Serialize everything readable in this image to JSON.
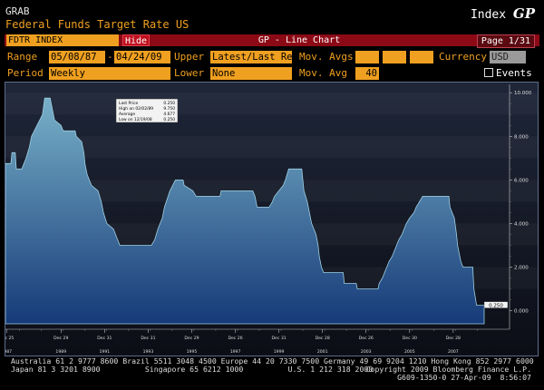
{
  "header": {
    "grab": "GRAB",
    "subtitle": "Federal Funds Target Rate US",
    "index_word": "Index",
    "gp": "GP"
  },
  "toolbar": {
    "ticker": "FDTR INDEX",
    "hide": "Hide",
    "title": "GP - Line Chart",
    "page": "Page 1/31"
  },
  "controls": {
    "range_label": "Range",
    "range_start": "05/08/87",
    "range_dash": "-",
    "range_end": "04/24/09",
    "upper_label": "Upper",
    "upper_value": "Latest/Last Re",
    "movavgs_label": "Mov. Avgs",
    "currency_label": "Currency",
    "currency_value": "USD",
    "period_label": "Period",
    "period_value": "Weekly",
    "lower_label": "Lower",
    "lower_value": "None",
    "movavg_label": "Mov. Avg",
    "movavg_value": "40",
    "events_label": "Events"
  },
  "legend_box": {
    "rows": [
      {
        "label": "Last Price",
        "value": "0.250"
      },
      {
        "label": "High on 02/02/89",
        "value": "9.750"
      },
      {
        "label": "Average",
        "value": "4.677"
      },
      {
        "label": "Low on 12/19/08",
        "value": "0.250"
      }
    ]
  },
  "footer": {
    "line1": "Australia 61 2 9777 8600 Brazil 5511 3048 4500 Europe 44 20 7330 7500 Germany 49 69 9204 1210 Hong Kong 852 2977 6000",
    "line2_left": "Japan 81 3 3201 8900          Singapore 65 6212 1000          U.S. 1 212 318 2000",
    "line2_right": "Copyright 2009 Bloomberg Finance L.P.",
    "line3_right": "G609-1350-0 27-Apr-09  8:56:07"
  },
  "colors": {
    "accent": "#f0a020",
    "bar": "#8c0a16",
    "area_top": "#78b0c8",
    "area_bottom": "#163a78"
  },
  "chart_data": {
    "type": "area",
    "x_axis_labels": [
      {
        "pos": 1987.4,
        "top": "Dec 25",
        "bottom": "1987"
      },
      {
        "pos": 1989.9,
        "top": "Dec 29",
        "bottom": "1989"
      },
      {
        "pos": 1991.9,
        "top": "Dec 31",
        "bottom": "1991"
      },
      {
        "pos": 1993.9,
        "top": "Dec 31",
        "bottom": "1993"
      },
      {
        "pos": 1995.9,
        "top": "Dec 29",
        "bottom": "1995"
      },
      {
        "pos": 1997.9,
        "top": "Dec 26",
        "bottom": "1997"
      },
      {
        "pos": 1999.9,
        "top": "Dec 31",
        "bottom": "1999"
      },
      {
        "pos": 2001.9,
        "top": "Dec 28",
        "bottom": "2001"
      },
      {
        "pos": 2003.9,
        "top": "Dec 26",
        "bottom": "2003"
      },
      {
        "pos": 2005.9,
        "top": "Dec 30",
        "bottom": "2005"
      },
      {
        "pos": 2007.9,
        "top": "Dec 28",
        "bottom": "2007"
      }
    ],
    "y_ticks": [
      0,
      2,
      4,
      6,
      8,
      10
    ],
    "y_tick_labels": [
      "0.000",
      "2.000",
      "4.000",
      "6.000",
      "8.000",
      "10.000"
    ],
    "last_value_label": "0.250",
    "xlim": [
      1987.35,
      2009.32
    ],
    "ylim": [
      -0.6,
      10.3
    ],
    "series": [
      {
        "points": [
          [
            1987.35,
            6.75
          ],
          [
            1987.6,
            6.75
          ],
          [
            1987.65,
            7.25
          ],
          [
            1987.8,
            7.25
          ],
          [
            1987.85,
            6.5
          ],
          [
            1988.1,
            6.5
          ],
          [
            1988.3,
            7.0
          ],
          [
            1988.45,
            7.5
          ],
          [
            1988.55,
            8.0
          ],
          [
            1988.8,
            8.5
          ],
          [
            1989.05,
            9.0
          ],
          [
            1989.15,
            9.75
          ],
          [
            1989.4,
            9.75
          ],
          [
            1989.5,
            9.25
          ],
          [
            1989.6,
            8.75
          ],
          [
            1989.9,
            8.5
          ],
          [
            1990.0,
            8.25
          ],
          [
            1990.55,
            8.25
          ],
          [
            1990.6,
            8.0
          ],
          [
            1990.85,
            7.75
          ],
          [
            1990.95,
            7.25
          ],
          [
            1991.0,
            6.75
          ],
          [
            1991.1,
            6.25
          ],
          [
            1991.3,
            5.75
          ],
          [
            1991.6,
            5.5
          ],
          [
            1991.75,
            5.0
          ],
          [
            1991.85,
            4.5
          ],
          [
            1992.0,
            4.0
          ],
          [
            1992.3,
            3.75
          ],
          [
            1992.5,
            3.25
          ],
          [
            1992.6,
            3.0
          ],
          [
            1994.05,
            3.0
          ],
          [
            1994.2,
            3.25
          ],
          [
            1994.35,
            3.75
          ],
          [
            1994.55,
            4.25
          ],
          [
            1994.65,
            4.75
          ],
          [
            1994.9,
            5.5
          ],
          [
            1995.15,
            6.0
          ],
          [
            1995.5,
            6.0
          ],
          [
            1995.55,
            5.75
          ],
          [
            1995.95,
            5.5
          ],
          [
            1996.1,
            5.25
          ],
          [
            1997.2,
            5.25
          ],
          [
            1997.25,
            5.5
          ],
          [
            1998.7,
            5.5
          ],
          [
            1998.8,
            5.25
          ],
          [
            1998.85,
            5.0
          ],
          [
            1998.9,
            4.75
          ],
          [
            1999.45,
            4.75
          ],
          [
            1999.6,
            5.0
          ],
          [
            1999.7,
            5.25
          ],
          [
            1999.9,
            5.5
          ],
          [
            2000.1,
            5.75
          ],
          [
            2000.2,
            6.0
          ],
          [
            2000.35,
            6.5
          ],
          [
            2000.95,
            6.5
          ],
          [
            2001.05,
            5.5
          ],
          [
            2001.2,
            5.0
          ],
          [
            2001.3,
            4.5
          ],
          [
            2001.4,
            4.0
          ],
          [
            2001.5,
            3.75
          ],
          [
            2001.6,
            3.5
          ],
          [
            2001.7,
            3.0
          ],
          [
            2001.75,
            2.5
          ],
          [
            2001.85,
            2.0
          ],
          [
            2001.95,
            1.75
          ],
          [
            2002.85,
            1.75
          ],
          [
            2002.9,
            1.25
          ],
          [
            2003.45,
            1.25
          ],
          [
            2003.5,
            1.0
          ],
          [
            2004.45,
            1.0
          ],
          [
            2004.5,
            1.25
          ],
          [
            2004.65,
            1.5
          ],
          [
            2004.75,
            1.75
          ],
          [
            2004.85,
            2.0
          ],
          [
            2004.95,
            2.25
          ],
          [
            2005.1,
            2.5
          ],
          [
            2005.2,
            2.75
          ],
          [
            2005.3,
            3.0
          ],
          [
            2005.4,
            3.25
          ],
          [
            2005.55,
            3.5
          ],
          [
            2005.65,
            3.75
          ],
          [
            2005.75,
            4.0
          ],
          [
            2005.9,
            4.25
          ],
          [
            2006.1,
            4.5
          ],
          [
            2006.2,
            4.75
          ],
          [
            2006.35,
            5.0
          ],
          [
            2006.5,
            5.25
          ],
          [
            2007.7,
            5.25
          ],
          [
            2007.75,
            4.75
          ],
          [
            2007.85,
            4.5
          ],
          [
            2007.95,
            4.25
          ],
          [
            2008.05,
            3.5
          ],
          [
            2008.1,
            3.0
          ],
          [
            2008.25,
            2.25
          ],
          [
            2008.35,
            2.0
          ],
          [
            2008.8,
            2.0
          ],
          [
            2008.82,
            1.5
          ],
          [
            2008.85,
            1.0
          ],
          [
            2008.97,
            0.25
          ],
          [
            2009.32,
            0.25
          ]
        ]
      }
    ]
  }
}
